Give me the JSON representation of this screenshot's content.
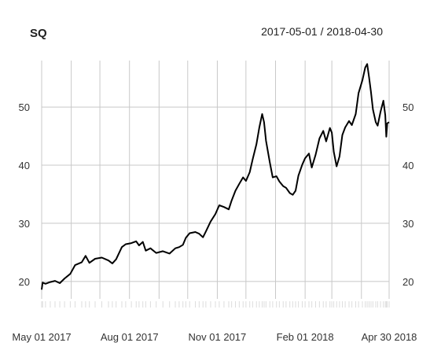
{
  "chart_data": {
    "type": "line",
    "title": "SQ",
    "date_range": "2017-05-01 / 2018-04-30",
    "xlabel": "",
    "ylabel": "",
    "xlim": [
      "2017-05-01",
      "2018-04-30"
    ],
    "ylim": [
      17,
      58
    ],
    "grid": true,
    "y_ticks": [
      20,
      30,
      40,
      50
    ],
    "x_ticks": [
      {
        "date": "2017-05-01",
        "label": "May 01 2017"
      },
      {
        "date": "2017-08-01",
        "label": "Aug 01 2017"
      },
      {
        "date": "2017-11-01",
        "label": "Nov 01 2017"
      },
      {
        "date": "2018-02-01",
        "label": "Feb 01 2018"
      },
      {
        "date": "2018-04-30",
        "label": "Apr 30 2018"
      }
    ],
    "x_grid_dates": [
      "2017-05-01",
      "2017-06-01",
      "2017-07-01",
      "2017-08-01",
      "2017-09-01",
      "2017-10-01",
      "2017-11-01",
      "2017-12-01",
      "2018-01-01",
      "2018-02-01",
      "2018-03-01",
      "2018-04-01",
      "2018-04-30"
    ],
    "series": [
      {
        "color": "#000000",
        "points": [
          [
            "2017-05-01",
            18.6
          ],
          [
            "2017-05-02",
            19.8
          ],
          [
            "2017-05-05",
            19.6
          ],
          [
            "2017-05-10",
            19.9
          ],
          [
            "2017-05-15",
            20.1
          ],
          [
            "2017-05-20",
            19.7
          ],
          [
            "2017-05-25",
            20.5
          ],
          [
            "2017-05-31",
            21.3
          ],
          [
            "2017-06-05",
            22.8
          ],
          [
            "2017-06-12",
            23.3
          ],
          [
            "2017-06-16",
            24.4
          ],
          [
            "2017-06-20",
            23.2
          ],
          [
            "2017-06-26",
            23.9
          ],
          [
            "2017-07-03",
            24.1
          ],
          [
            "2017-07-10",
            23.6
          ],
          [
            "2017-07-14",
            23.1
          ],
          [
            "2017-07-18",
            23.8
          ],
          [
            "2017-07-24",
            25.9
          ],
          [
            "2017-07-28",
            26.4
          ],
          [
            "2017-08-03",
            26.6
          ],
          [
            "2017-08-08",
            26.9
          ],
          [
            "2017-08-11",
            26.2
          ],
          [
            "2017-08-15",
            26.8
          ],
          [
            "2017-08-18",
            25.3
          ],
          [
            "2017-08-23",
            25.7
          ],
          [
            "2017-08-29",
            24.9
          ],
          [
            "2017-09-05",
            25.2
          ],
          [
            "2017-09-12",
            24.8
          ],
          [
            "2017-09-18",
            25.7
          ],
          [
            "2017-09-22",
            25.9
          ],
          [
            "2017-09-26",
            26.3
          ],
          [
            "2017-09-29",
            27.5
          ],
          [
            "2017-10-03",
            28.3
          ],
          [
            "2017-10-09",
            28.5
          ],
          [
            "2017-10-13",
            28.2
          ],
          [
            "2017-10-17",
            27.6
          ],
          [
            "2017-10-20",
            28.6
          ],
          [
            "2017-10-25",
            30.3
          ],
          [
            "2017-10-30",
            31.6
          ],
          [
            "2017-11-03",
            33.1
          ],
          [
            "2017-11-08",
            32.8
          ],
          [
            "2017-11-13",
            32.4
          ],
          [
            "2017-11-16",
            33.9
          ],
          [
            "2017-11-20",
            35.6
          ],
          [
            "2017-11-24",
            36.8
          ],
          [
            "2017-11-28",
            37.9
          ],
          [
            "2017-12-01",
            37.3
          ],
          [
            "2017-12-05",
            38.8
          ],
          [
            "2017-12-08",
            41.0
          ],
          [
            "2017-12-12",
            43.6
          ],
          [
            "2017-12-15",
            46.5
          ],
          [
            "2017-12-18",
            48.8
          ],
          [
            "2017-12-20",
            47.4
          ],
          [
            "2017-12-22",
            44.2
          ],
          [
            "2017-12-26",
            40.5
          ],
          [
            "2017-12-29",
            37.9
          ],
          [
            "2018-01-02",
            38.1
          ],
          [
            "2018-01-05",
            37.2
          ],
          [
            "2018-01-09",
            36.4
          ],
          [
            "2018-01-12",
            36.1
          ],
          [
            "2018-01-16",
            35.2
          ],
          [
            "2018-01-19",
            34.9
          ],
          [
            "2018-01-22",
            35.6
          ],
          [
            "2018-01-25",
            38.2
          ],
          [
            "2018-01-29",
            40.1
          ],
          [
            "2018-02-01",
            41.2
          ],
          [
            "2018-02-05",
            42.0
          ],
          [
            "2018-02-08",
            39.6
          ],
          [
            "2018-02-12",
            41.8
          ],
          [
            "2018-02-16",
            44.6
          ],
          [
            "2018-02-20",
            45.9
          ],
          [
            "2018-02-23",
            44.1
          ],
          [
            "2018-02-27",
            46.4
          ],
          [
            "2018-03-01",
            45.6
          ],
          [
            "2018-03-03",
            42.3
          ],
          [
            "2018-03-06",
            39.8
          ],
          [
            "2018-03-09",
            41.5
          ],
          [
            "2018-03-12",
            45.2
          ],
          [
            "2018-03-15",
            46.5
          ],
          [
            "2018-03-19",
            47.6
          ],
          [
            "2018-03-22",
            46.9
          ],
          [
            "2018-03-26",
            48.8
          ],
          [
            "2018-03-29",
            52.4
          ],
          [
            "2018-04-02",
            54.6
          ],
          [
            "2018-04-05",
            56.8
          ],
          [
            "2018-04-07",
            57.4
          ],
          [
            "2018-04-09",
            55.1
          ],
          [
            "2018-04-11",
            52.6
          ],
          [
            "2018-04-13",
            49.6
          ],
          [
            "2018-04-16",
            47.4
          ],
          [
            "2018-04-18",
            46.8
          ],
          [
            "2018-04-21",
            49.2
          ],
          [
            "2018-04-24",
            51.1
          ],
          [
            "2018-04-26",
            48.6
          ],
          [
            "2018-04-27",
            44.9
          ],
          [
            "2018-04-28",
            47.2
          ],
          [
            "2018-04-30",
            47.4
          ]
        ]
      }
    ]
  }
}
